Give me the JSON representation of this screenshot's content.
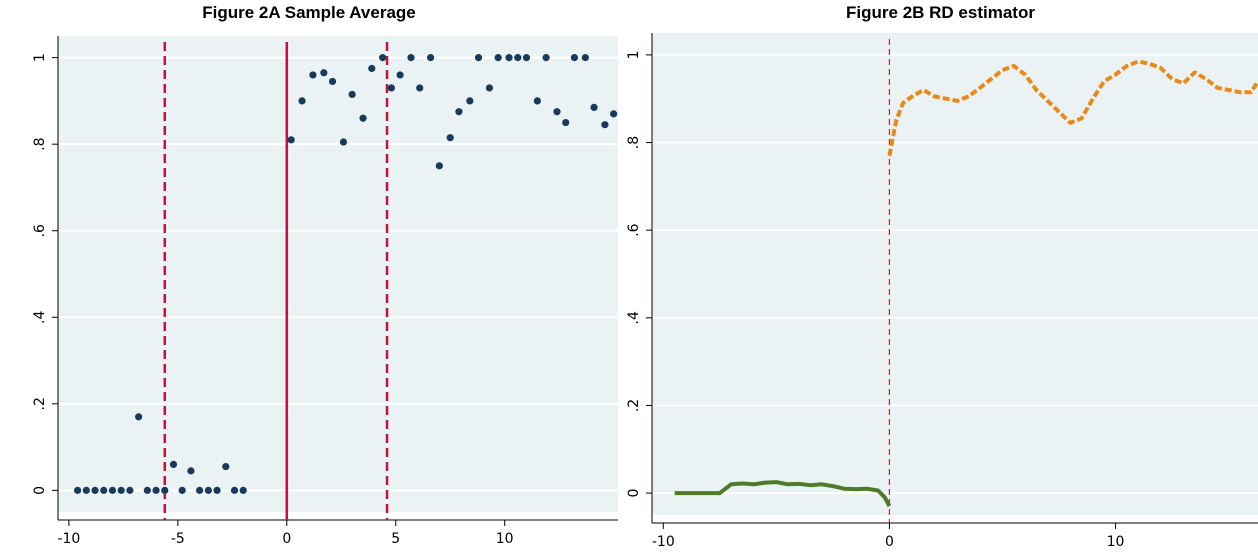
{
  "chart_data": [
    {
      "type": "scatter",
      "title": "Figure 2A Sample Average",
      "xlabel": "",
      "ylabel": "",
      "xlim": [
        -10.5,
        15.2
      ],
      "ylim": [
        -0.05,
        1.05
      ],
      "xticks": [
        -10,
        -5,
        0,
        5,
        10
      ],
      "xtick_labels": [
        "-10",
        "-5",
        "0",
        "5",
        "10"
      ],
      "yticks": [
        0,
        0.2,
        0.4,
        0.6,
        0.8,
        1
      ],
      "ytick_labels": [
        "0",
        ".2",
        ".4",
        ".6",
        ".8",
        "1"
      ],
      "grid": "horizontal",
      "background": "#eaf2f3",
      "point_color": "#1a3a5c",
      "reference_lines": [
        {
          "x": -5.6,
          "style": "dashed",
          "color": "#c0143c"
        },
        {
          "x": 0,
          "style": "solid",
          "color": "#c0143c"
        },
        {
          "x": 4.6,
          "style": "dashed",
          "color": "#c0143c"
        }
      ],
      "points": [
        [
          -9.6,
          0
        ],
        [
          -9.2,
          0
        ],
        [
          -8.8,
          0
        ],
        [
          -8.4,
          0
        ],
        [
          -8.0,
          0
        ],
        [
          -7.6,
          0
        ],
        [
          -7.2,
          0
        ],
        [
          -6.8,
          0.17
        ],
        [
          -6.4,
          0
        ],
        [
          -6.0,
          0
        ],
        [
          -5.6,
          0
        ],
        [
          -5.2,
          0.06
        ],
        [
          -4.8,
          0
        ],
        [
          -4.4,
          0.045
        ],
        [
          -4.0,
          0
        ],
        [
          -3.6,
          0
        ],
        [
          -3.2,
          0
        ],
        [
          -2.8,
          0.055
        ],
        [
          -2.4,
          0
        ],
        [
          -2.0,
          0
        ],
        [
          0.2,
          0.81
        ],
        [
          0.7,
          0.9
        ],
        [
          1.2,
          0.96
        ],
        [
          1.7,
          0.965
        ],
        [
          2.1,
          0.945
        ],
        [
          2.6,
          0.805
        ],
        [
          3.0,
          0.915
        ],
        [
          3.5,
          0.86
        ],
        [
          3.9,
          0.975
        ],
        [
          4.4,
          1.0
        ],
        [
          4.8,
          0.93
        ],
        [
          5.2,
          0.96
        ],
        [
          5.7,
          1.0
        ],
        [
          6.1,
          0.93
        ],
        [
          6.6,
          1.0
        ],
        [
          7.0,
          0.75
        ],
        [
          7.5,
          0.815
        ],
        [
          7.9,
          0.875
        ],
        [
          8.4,
          0.9
        ],
        [
          8.8,
          1.0
        ],
        [
          9.3,
          0.93
        ],
        [
          9.7,
          1.0
        ],
        [
          10.2,
          1.0
        ],
        [
          10.6,
          1.0
        ],
        [
          11.0,
          1.0
        ],
        [
          11.5,
          0.9
        ],
        [
          11.9,
          1.0
        ],
        [
          12.4,
          0.875
        ],
        [
          12.8,
          0.85
        ],
        [
          13.2,
          1.0
        ],
        [
          13.7,
          1.0
        ],
        [
          14.1,
          0.885
        ],
        [
          14.6,
          0.845
        ],
        [
          15.0,
          0.87
        ]
      ]
    },
    {
      "type": "line",
      "title": "Figure 2B RD estimator",
      "xlabel": "",
      "ylabel": "",
      "xlim": [
        -10.5,
        16.3
      ],
      "ylim": [
        -0.05,
        1.05
      ],
      "xticks": [
        -10,
        0,
        10
      ],
      "xtick_labels": [
        "-10",
        "0",
        "10"
      ],
      "yticks": [
        0,
        0.2,
        0.4,
        0.6,
        0.8,
        1
      ],
      "ytick_labels": [
        "0",
        ".2",
        ".4",
        ".6",
        ".8",
        "1"
      ],
      "grid": "horizontal",
      "background": "#eaf2f3",
      "reference_lines": [
        {
          "x": 0,
          "style": "dashed",
          "color": "#a03040"
        }
      ],
      "series": [
        {
          "color": "#4f7a2a",
          "style": "solid",
          "x": [
            -9.5,
            -9,
            -8.5,
            -8,
            -7.5,
            -7,
            -6.5,
            -6,
            -5.5,
            -5,
            -4.5,
            -4,
            -3.5,
            -3,
            -2.5,
            -2,
            -1.5,
            -1,
            -0.5,
            -0.2,
            0
          ],
          "y": [
            0,
            0,
            0,
            0,
            0,
            0.02,
            0.022,
            0.02,
            0.024,
            0.025,
            0.02,
            0.021,
            0.018,
            0.02,
            0.016,
            0.01,
            0.009,
            0.01,
            0.006,
            -0.01,
            -0.03
          ]
        },
        {
          "color": "#e88a1a",
          "style": "dashed",
          "x": [
            0,
            0.3,
            0.6,
            1.0,
            1.5,
            2.0,
            2.5,
            3.0,
            3.5,
            4.0,
            4.5,
            5.0,
            5.5,
            6.0,
            6.5,
            7.0,
            7.5,
            8.0,
            8.5,
            9.0,
            9.5,
            10.0,
            10.5,
            11.0,
            11.5,
            12.0,
            12.5,
            13.0,
            13.5,
            14.0,
            14.5,
            15.0,
            15.5,
            16.0,
            16.3
          ],
          "y": [
            0.77,
            0.85,
            0.89,
            0.905,
            0.92,
            0.905,
            0.9,
            0.895,
            0.905,
            0.925,
            0.945,
            0.965,
            0.975,
            0.955,
            0.92,
            0.895,
            0.87,
            0.845,
            0.855,
            0.9,
            0.94,
            0.955,
            0.975,
            0.985,
            0.98,
            0.97,
            0.945,
            0.935,
            0.96,
            0.945,
            0.925,
            0.92,
            0.915,
            0.915,
            0.94
          ]
        }
      ]
    }
  ]
}
